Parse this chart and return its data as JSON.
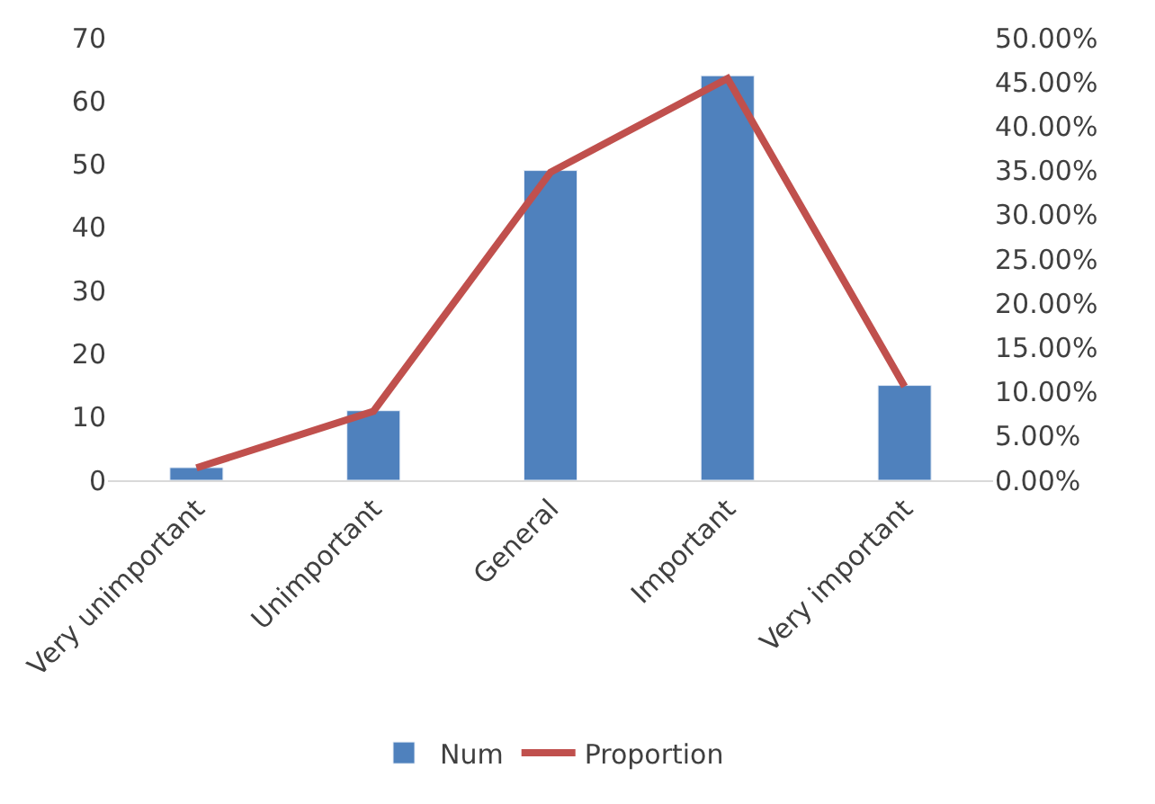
{
  "chart_data": {
    "type": "bar",
    "categories": [
      "Very unimportant",
      "Unimportant",
      "General",
      "Important",
      "Very important"
    ],
    "series": [
      {
        "name": "Num",
        "color": "#4f81bd",
        "values": [
          2,
          11,
          49,
          64,
          15
        ]
      },
      {
        "name": "Proportion",
        "type": "line",
        "axis": "y2",
        "color": "#c0504d",
        "values": [
          1.4,
          7.8,
          34.8,
          45.4,
          10.6
        ]
      }
    ],
    "ylim": [
      0,
      70
    ],
    "yticks": [
      0,
      10,
      20,
      30,
      40,
      50,
      60,
      70
    ],
    "y2lim": [
      0,
      50
    ],
    "y2ticks": [
      {
        "value": 0,
        "label": "0.00%"
      },
      {
        "value": 5,
        "label": "5.00%"
      },
      {
        "value": 10,
        "label": "10.00%"
      },
      {
        "value": 15,
        "label": "15.00%"
      },
      {
        "value": 20,
        "label": "20.00%"
      },
      {
        "value": 25,
        "label": "25.00%"
      },
      {
        "value": 30,
        "label": "30.00%"
      },
      {
        "value": 35,
        "label": "35.00%"
      },
      {
        "value": 40,
        "label": "40.00%"
      },
      {
        "value": 45,
        "label": "45.00%"
      },
      {
        "value": 50,
        "label": "50.00%"
      }
    ],
    "grid": false,
    "legend": "bottom",
    "marker": "none",
    "line_style": "solid"
  }
}
